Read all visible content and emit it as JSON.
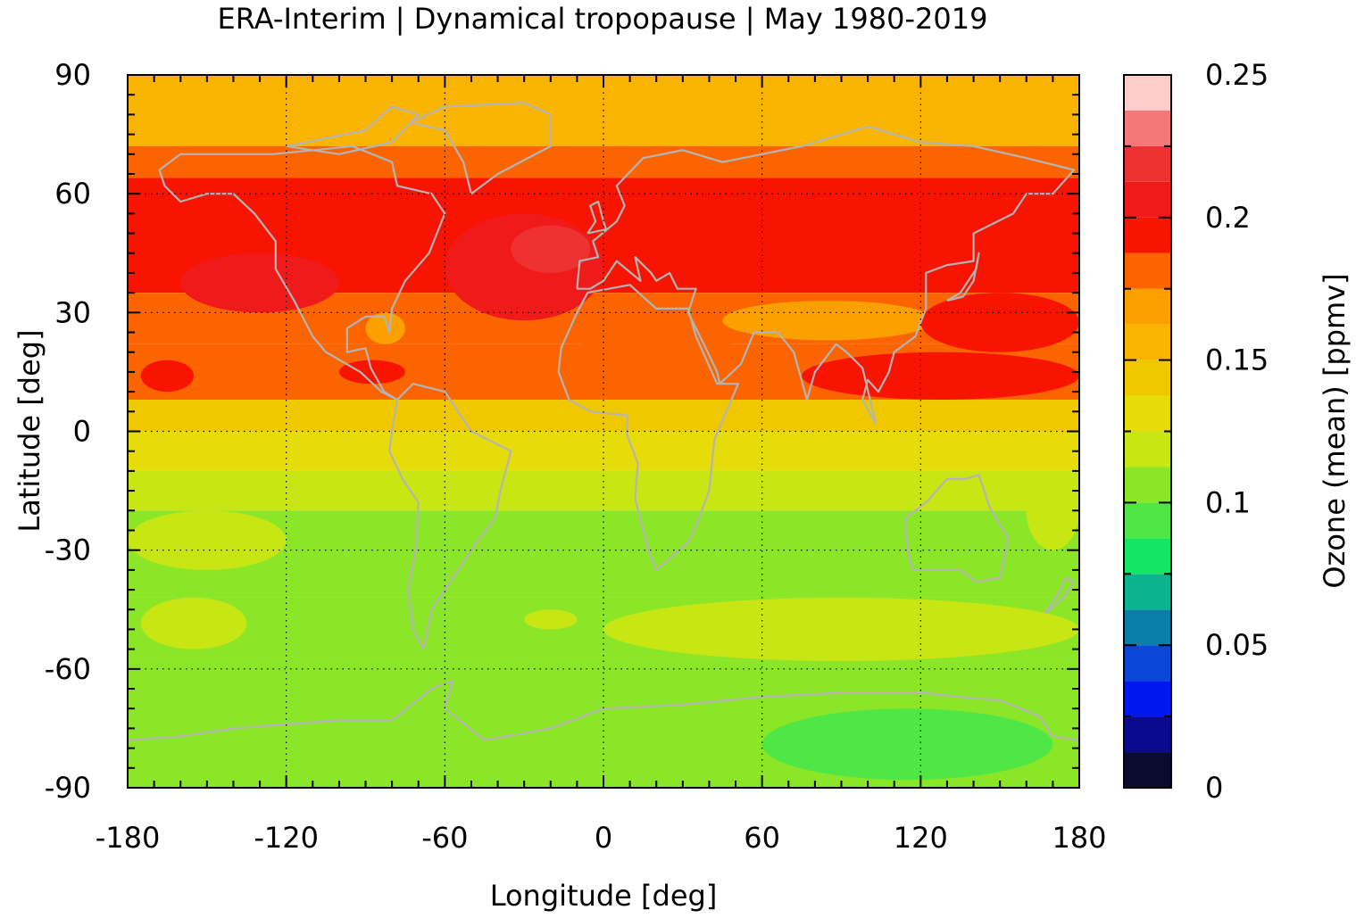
{
  "title": "ERA-Interim | Dynamical tropopause | May 1980-2019",
  "chart_data": {
    "type": "heatmap",
    "title": "ERA-Interim | Dynamical tropopause | May 1980-2019",
    "xlabel": "Longitude [deg]",
    "ylabel": "Latitude [deg]",
    "colorbar_label": "Ozone (mean) [ppmv]",
    "xlim": [
      -180,
      180
    ],
    "ylim": [
      -90,
      90
    ],
    "x_ticks": [
      "-180",
      "-120",
      "-60",
      "0",
      "60",
      "120",
      "180"
    ],
    "y_ticks": [
      "90",
      "60",
      "30",
      "0",
      "-30",
      "-60",
      "-90"
    ],
    "x_tick_values": [
      -180,
      -120,
      -60,
      0,
      60,
      120,
      180
    ],
    "y_tick_values": [
      90,
      60,
      30,
      0,
      -30,
      -60,
      -90
    ],
    "colorbar_ticks": [
      "0.25",
      "0.2",
      "0.15",
      "0.1",
      "0.05",
      "0"
    ],
    "colorbar_tick_values": [
      0.25,
      0.2,
      0.15,
      0.1,
      0.05,
      0
    ],
    "colorbar_range": [
      0,
      0.25
    ],
    "grid": true,
    "coastline_color": "#b4b4b4",
    "colorbar_levels": [
      {
        "from": 0.0,
        "to": 0.0125,
        "color": "#0b0b30"
      },
      {
        "from": 0.0125,
        "to": 0.025,
        "color": "#0a0a90"
      },
      {
        "from": 0.025,
        "to": 0.0375,
        "color": "#0018f0"
      },
      {
        "from": 0.0375,
        "to": 0.05,
        "color": "#0a46d8"
      },
      {
        "from": 0.05,
        "to": 0.0625,
        "color": "#0a7ea8"
      },
      {
        "from": 0.0625,
        "to": 0.075,
        "color": "#0ab48c"
      },
      {
        "from": 0.075,
        "to": 0.0875,
        "color": "#14e664"
      },
      {
        "from": 0.0875,
        "to": 0.1,
        "color": "#50e646"
      },
      {
        "from": 0.1,
        "to": 0.1125,
        "color": "#8ce628"
      },
      {
        "from": 0.1125,
        "to": 0.125,
        "color": "#c8e614"
      },
      {
        "from": 0.125,
        "to": 0.1375,
        "color": "#e6dc0a"
      },
      {
        "from": 0.1375,
        "to": 0.15,
        "color": "#f0c800"
      },
      {
        "from": 0.15,
        "to": 0.1625,
        "color": "#f8b400"
      },
      {
        "from": 0.1625,
        "to": 0.175,
        "color": "#fca000"
      },
      {
        "from": 0.175,
        "to": 0.1875,
        "color": "#fc6400"
      },
      {
        "from": 0.1875,
        "to": 0.2,
        "color": "#f81400"
      },
      {
        "from": 0.2,
        "to": 0.2125,
        "color": "#f01a1a"
      },
      {
        "from": 0.2125,
        "to": 0.225,
        "color": "#ee3232"
      },
      {
        "from": 0.225,
        "to": 0.2375,
        "color": "#f57878"
      },
      {
        "from": 0.2375,
        "to": 0.25,
        "color": "#ffcccc"
      }
    ],
    "zonal_bands": [
      {
        "lat_from": 90,
        "lat_to": 72,
        "value": 0.16
      },
      {
        "lat_from": 72,
        "lat_to": 64,
        "value": 0.18
      },
      {
        "lat_from": 64,
        "lat_to": 35,
        "value": 0.195
      },
      {
        "lat_from": 35,
        "lat_to": 22,
        "value": 0.18
      },
      {
        "lat_from": 22,
        "lat_to": 8,
        "value": 0.18
      },
      {
        "lat_from": 8,
        "lat_to": 0,
        "value": 0.145
      },
      {
        "lat_from": 0,
        "lat_to": -10,
        "value": 0.13
      },
      {
        "lat_from": -10,
        "lat_to": -20,
        "value": 0.12
      },
      {
        "lat_from": -20,
        "lat_to": -42,
        "value": 0.105
      },
      {
        "lat_from": -42,
        "lat_to": -58,
        "value": 0.11
      },
      {
        "lat_from": -58,
        "lat_to": -90,
        "value": 0.105
      }
    ],
    "regions": [
      {
        "lon": [
          -160,
          -100
        ],
        "lat": [
          30,
          45
        ],
        "value": 0.205
      },
      {
        "lon": [
          -60,
          0
        ],
        "lat": [
          28,
          55
        ],
        "value": 0.205
      },
      {
        "lon": [
          -35,
          -5
        ],
        "lat": [
          40,
          52
        ],
        "value": 0.215
      },
      {
        "lon": [
          -175,
          -155
        ],
        "lat": [
          10,
          18
        ],
        "value": 0.195
      },
      {
        "lon": [
          -100,
          -75
        ],
        "lat": [
          12,
          18
        ],
        "value": 0.195
      },
      {
        "lon": [
          -90,
          -75
        ],
        "lat": [
          22,
          30
        ],
        "value": 0.17
      },
      {
        "lon": [
          -15,
          55
        ],
        "lat": [
          20,
          30
        ],
        "value": 0.18
      },
      {
        "lon": [
          45,
          125
        ],
        "lat": [
          23,
          33
        ],
        "value": 0.165
      },
      {
        "lon": [
          75,
          180
        ],
        "lat": [
          8,
          20
        ],
        "value": 0.195
      },
      {
        "lon": [
          120,
          180
        ],
        "lat": [
          20,
          35
        ],
        "value": 0.195
      },
      {
        "lon": [
          -180,
          -120
        ],
        "lat": [
          -35,
          -20
        ],
        "value": 0.115
      },
      {
        "lon": [
          160,
          180
        ],
        "lat": [
          -30,
          -10
        ],
        "value": 0.12
      },
      {
        "lon": [
          -175,
          -135
        ],
        "lat": [
          -55,
          -42
        ],
        "value": 0.115
      },
      {
        "lon": [
          0,
          180
        ],
        "lat": [
          -58,
          -42
        ],
        "value": 0.115
      },
      {
        "lon": [
          -30,
          -10
        ],
        "lat": [
          -50,
          -45
        ],
        "value": 0.115
      },
      {
        "lon": [
          60,
          170
        ],
        "lat": [
          -88,
          -70
        ],
        "value": 0.095
      }
    ]
  }
}
